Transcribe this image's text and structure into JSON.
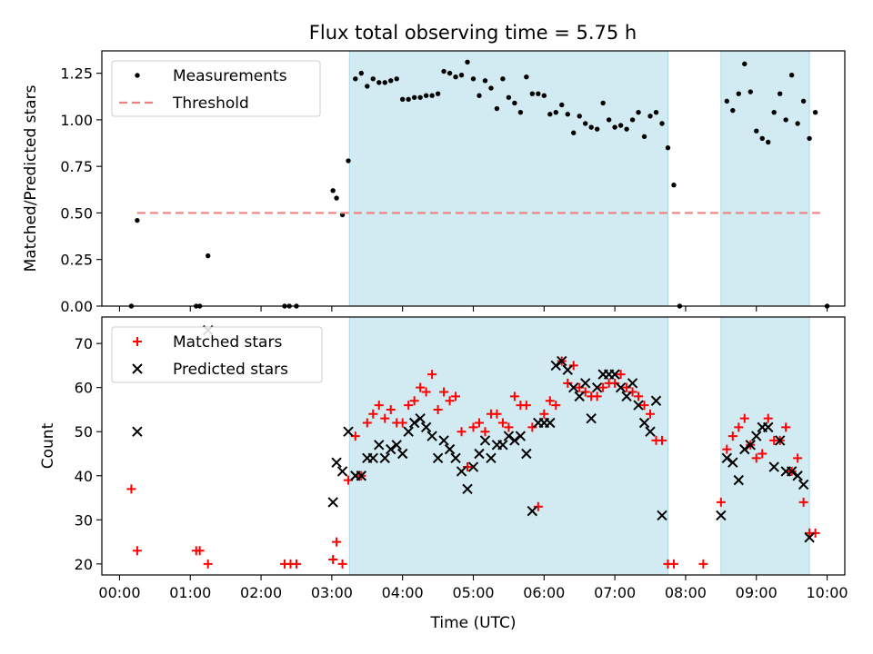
{
  "figure": {
    "title": "Flux total observing time = 5.75 h"
  },
  "chart_data": [
    {
      "type": "scatter",
      "ylabel": "Matched/Predicted stars",
      "xlabel": "",
      "xlim": [
        "23:45",
        "10:15"
      ],
      "ylim": [
        0.0,
        1.37
      ],
      "yticks": [
        0.0,
        0.25,
        0.5,
        0.75,
        1.0,
        1.25
      ],
      "ytick_labels": [
        "0.00",
        "0.25",
        "0.50",
        "0.75",
        "1.00",
        "1.25"
      ],
      "grid": false,
      "legend": "upper left",
      "shaded_intervals": [
        [
          "03:15",
          "07:45"
        ],
        [
          "08:30",
          "09:45"
        ]
      ],
      "shade_color": "#add8e6",
      "series": [
        {
          "name": "Measurements",
          "marker": "dot",
          "color": "#000000",
          "points": [
            [
              "00:10",
              0.0
            ],
            [
              "00:15",
              0.46
            ],
            [
              "01:05",
              0.0
            ],
            [
              "01:08",
              0.0
            ],
            [
              "01:15",
              0.27
            ],
            [
              "02:20",
              0.0
            ],
            [
              "02:24",
              0.0
            ],
            [
              "02:30",
              0.0
            ],
            [
              "03:01",
              0.62
            ],
            [
              "03:04",
              0.58
            ],
            [
              "03:09",
              0.49
            ],
            [
              "03:14",
              0.78
            ],
            [
              "03:20",
              1.22
            ],
            [
              "03:25",
              1.25
            ],
            [
              "03:30",
              1.18
            ],
            [
              "03:35",
              1.22
            ],
            [
              "03:40",
              1.2
            ],
            [
              "03:45",
              1.2
            ],
            [
              "03:50",
              1.21
            ],
            [
              "03:55",
              1.22
            ],
            [
              "04:00",
              1.11
            ],
            [
              "04:05",
              1.11
            ],
            [
              "04:10",
              1.12
            ],
            [
              "04:15",
              1.12
            ],
            [
              "04:20",
              1.13
            ],
            [
              "04:25",
              1.13
            ],
            [
              "04:30",
              1.14
            ],
            [
              "04:35",
              1.26
            ],
            [
              "04:40",
              1.25
            ],
            [
              "04:45",
              1.23
            ],
            [
              "04:50",
              1.24
            ],
            [
              "04:55",
              1.31
            ],
            [
              "05:00",
              1.22
            ],
            [
              "05:05",
              1.13
            ],
            [
              "05:10",
              1.21
            ],
            [
              "05:15",
              1.17
            ],
            [
              "05:20",
              1.06
            ],
            [
              "05:25",
              1.22
            ],
            [
              "05:30",
              1.12
            ],
            [
              "05:35",
              1.09
            ],
            [
              "05:40",
              1.04
            ],
            [
              "05:45",
              1.23
            ],
            [
              "05:50",
              1.14
            ],
            [
              "05:55",
              1.14
            ],
            [
              "06:00",
              1.13
            ],
            [
              "06:05",
              1.03
            ],
            [
              "06:10",
              1.04
            ],
            [
              "06:15",
              1.08
            ],
            [
              "06:20",
              1.03
            ],
            [
              "06:25",
              0.93
            ],
            [
              "06:30",
              1.02
            ],
            [
              "06:35",
              0.98
            ],
            [
              "06:40",
              0.96
            ],
            [
              "06:45",
              0.95
            ],
            [
              "06:50",
              1.09
            ],
            [
              "06:55",
              1.0
            ],
            [
              "07:00",
              0.96
            ],
            [
              "07:05",
              0.97
            ],
            [
              "07:10",
              0.95
            ],
            [
              "07:15",
              1.0
            ],
            [
              "07:20",
              1.04
            ],
            [
              "07:25",
              0.91
            ],
            [
              "07:30",
              1.02
            ],
            [
              "07:35",
              1.04
            ],
            [
              "07:40",
              0.98
            ],
            [
              "07:45",
              0.85
            ],
            [
              "07:50",
              0.65
            ],
            [
              "07:55",
              0.0
            ],
            [
              "08:35",
              1.1
            ],
            [
              "08:40",
              1.05
            ],
            [
              "08:45",
              1.14
            ],
            [
              "08:50",
              1.3
            ],
            [
              "08:55",
              1.15
            ],
            [
              "09:00",
              0.94
            ],
            [
              "09:05",
              0.9
            ],
            [
              "09:10",
              0.88
            ],
            [
              "09:15",
              1.04
            ],
            [
              "09:20",
              1.14
            ],
            [
              "09:25",
              1.0
            ],
            [
              "09:30",
              1.24
            ],
            [
              "09:35",
              0.98
            ],
            [
              "09:40",
              1.1
            ],
            [
              "09:45",
              0.9
            ],
            [
              "09:50",
              1.04
            ],
            [
              "10:00",
              0.0
            ]
          ]
        },
        {
          "name": "Threshold",
          "style": "dashed",
          "color": "#f08080",
          "points": [
            [
              "00:15",
              0.5
            ],
            [
              "09:55",
              0.5
            ]
          ]
        }
      ]
    },
    {
      "type": "scatter",
      "ylabel": "Count",
      "xlabel": "Time (UTC)",
      "xlim": [
        "23:45",
        "10:15"
      ],
      "ylim": [
        17.5,
        76
      ],
      "yticks": [
        20,
        30,
        40,
        50,
        60,
        70
      ],
      "xtick_labels": [
        "00:00",
        "01:00",
        "02:00",
        "03:00",
        "04:00",
        "05:00",
        "06:00",
        "07:00",
        "08:00",
        "09:00",
        "10:00"
      ],
      "grid": false,
      "legend": "upper left",
      "shaded_intervals": [
        [
          "03:15",
          "07:45"
        ],
        [
          "08:30",
          "09:45"
        ]
      ],
      "shade_color": "#add8e6",
      "series": [
        {
          "name": "Matched stars",
          "marker": "plus",
          "color": "#ff0000",
          "points": [
            [
              "00:10",
              37
            ],
            [
              "00:15",
              23
            ],
            [
              "01:05",
              23
            ],
            [
              "01:08",
              23
            ],
            [
              "01:15",
              20
            ],
            [
              "02:20",
              20
            ],
            [
              "02:25",
              20
            ],
            [
              "02:30",
              20
            ],
            [
              "03:01",
              21
            ],
            [
              "03:04",
              25
            ],
            [
              "03:09",
              20
            ],
            [
              "03:14",
              39
            ],
            [
              "03:20",
              49
            ],
            [
              "03:25",
              40
            ],
            [
              "03:30",
              52
            ],
            [
              "03:35",
              54
            ],
            [
              "03:40",
              56
            ],
            [
              "03:45",
              53
            ],
            [
              "03:50",
              55
            ],
            [
              "03:55",
              52
            ],
            [
              "04:00",
              52
            ],
            [
              "04:05",
              56
            ],
            [
              "04:10",
              57
            ],
            [
              "04:15",
              60
            ],
            [
              "04:20",
              59
            ],
            [
              "04:25",
              63
            ],
            [
              "04:30",
              55
            ],
            [
              "04:35",
              59
            ],
            [
              "04:40",
              57
            ],
            [
              "04:45",
              58
            ],
            [
              "04:50",
              50
            ],
            [
              "04:55",
              42
            ],
            [
              "05:00",
              51
            ],
            [
              "05:05",
              52
            ],
            [
              "05:10",
              50
            ],
            [
              "05:15",
              54
            ],
            [
              "05:20",
              54
            ],
            [
              "05:25",
              52
            ],
            [
              "05:30",
              51
            ],
            [
              "05:35",
              58
            ],
            [
              "05:40",
              56
            ],
            [
              "05:45",
              56
            ],
            [
              "05:50",
              51
            ],
            [
              "05:55",
              33
            ],
            [
              "06:00",
              54
            ],
            [
              "06:05",
              57
            ],
            [
              "06:10",
              56
            ],
            [
              "06:15",
              66
            ],
            [
              "06:20",
              61
            ],
            [
              "06:25",
              65
            ],
            [
              "06:30",
              60
            ],
            [
              "06:35",
              59
            ],
            [
              "06:40",
              58
            ],
            [
              "06:45",
              58
            ],
            [
              "06:50",
              60
            ],
            [
              "06:55",
              61
            ],
            [
              "07:00",
              61
            ],
            [
              "07:05",
              63
            ],
            [
              "07:10",
              60
            ],
            [
              "07:15",
              59
            ],
            [
              "07:20",
              58
            ],
            [
              "07:25",
              56
            ],
            [
              "07:30",
              54
            ],
            [
              "07:35",
              48
            ],
            [
              "07:40",
              48
            ],
            [
              "07:45",
              20
            ],
            [
              "07:50",
              20
            ],
            [
              "08:15",
              20
            ],
            [
              "08:30",
              34
            ],
            [
              "08:35",
              46
            ],
            [
              "08:40",
              49
            ],
            [
              "08:45",
              51
            ],
            [
              "08:50",
              53
            ],
            [
              "08:55",
              47
            ],
            [
              "09:00",
              44
            ],
            [
              "09:05",
              45
            ],
            [
              "09:10",
              53
            ],
            [
              "09:15",
              48
            ],
            [
              "09:20",
              48
            ],
            [
              "09:25",
              51
            ],
            [
              "09:30",
              41
            ],
            [
              "09:35",
              44
            ],
            [
              "09:40",
              34
            ],
            [
              "09:45",
              27
            ],
            [
              "09:50",
              27
            ]
          ]
        },
        {
          "name": "Predicted stars",
          "marker": "x",
          "color": "#000000",
          "points": [
            [
              "00:15",
              50
            ],
            [
              "01:15",
              73
            ],
            [
              "03:01",
              34
            ],
            [
              "03:04",
              43
            ],
            [
              "03:09",
              41
            ],
            [
              "03:14",
              50
            ],
            [
              "03:20",
              40
            ],
            [
              "03:25",
              40
            ],
            [
              "03:30",
              44
            ],
            [
              "03:35",
              44
            ],
            [
              "03:40",
              47
            ],
            [
              "03:45",
              44
            ],
            [
              "03:50",
              46
            ],
            [
              "03:55",
              47
            ],
            [
              "04:00",
              45
            ],
            [
              "04:05",
              50
            ],
            [
              "04:10",
              52
            ],
            [
              "04:15",
              53
            ],
            [
              "04:20",
              51
            ],
            [
              "04:25",
              49
            ],
            [
              "04:30",
              44
            ],
            [
              "04:35",
              48
            ],
            [
              "04:40",
              46
            ],
            [
              "04:45",
              44
            ],
            [
              "04:50",
              41
            ],
            [
              "04:55",
              37
            ],
            [
              "05:00",
              42
            ],
            [
              "05:05",
              45
            ],
            [
              "05:10",
              48
            ],
            [
              "05:15",
              44
            ],
            [
              "05:20",
              47
            ],
            [
              "05:25",
              47
            ],
            [
              "05:30",
              49
            ],
            [
              "05:35",
              48
            ],
            [
              "05:40",
              49
            ],
            [
              "05:45",
              45
            ],
            [
              "05:50",
              32
            ],
            [
              "05:55",
              52
            ],
            [
              "06:00",
              52
            ],
            [
              "06:05",
              52
            ],
            [
              "06:10",
              65
            ],
            [
              "06:15",
              66
            ],
            [
              "06:20",
              64
            ],
            [
              "06:25",
              60
            ],
            [
              "06:30",
              58
            ],
            [
              "06:35",
              61
            ],
            [
              "06:40",
              53
            ],
            [
              "06:45",
              60
            ],
            [
              "06:50",
              63
            ],
            [
              "06:55",
              63
            ],
            [
              "07:00",
              63
            ],
            [
              "07:05",
              60
            ],
            [
              "07:10",
              58
            ],
            [
              "07:15",
              61
            ],
            [
              "07:20",
              56
            ],
            [
              "07:25",
              52
            ],
            [
              "07:30",
              50
            ],
            [
              "07:35",
              57
            ],
            [
              "07:40",
              31
            ],
            [
              "08:30",
              31
            ],
            [
              "08:35",
              44
            ],
            [
              "08:40",
              43
            ],
            [
              "08:45",
              39
            ],
            [
              "08:50",
              46
            ],
            [
              "08:55",
              47
            ],
            [
              "09:00",
              49
            ],
            [
              "09:05",
              51
            ],
            [
              "09:10",
              51
            ],
            [
              "09:15",
              42
            ],
            [
              "09:20",
              48
            ],
            [
              "09:25",
              41
            ],
            [
              "09:30",
              41
            ],
            [
              "09:35",
              40
            ],
            [
              "09:40",
              38
            ],
            [
              "09:45",
              26
            ]
          ]
        }
      ]
    }
  ]
}
